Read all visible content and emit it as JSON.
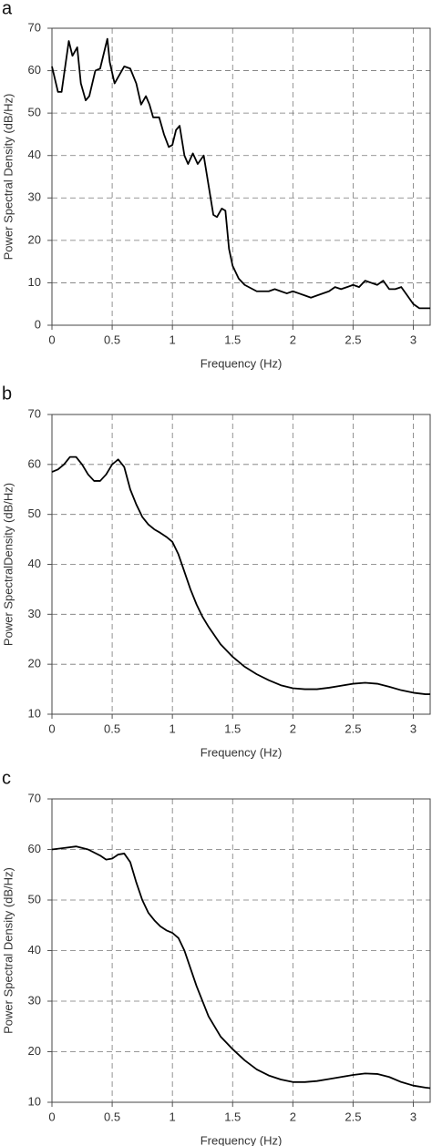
{
  "chart_data": [
    {
      "type": "line",
      "panel_label": "a",
      "xlabel": "Frequency (Hz)",
      "ylabel": "Power Spectral Density (dB/Hz)",
      "x": [
        0,
        0.05,
        0.08,
        0.14,
        0.17,
        0.21,
        0.24,
        0.28,
        0.31,
        0.36,
        0.4,
        0.46,
        0.48,
        0.52,
        0.55,
        0.6,
        0.65,
        0.7,
        0.74,
        0.78,
        0.81,
        0.84,
        0.89,
        0.93,
        0.97,
        1.0,
        1.03,
        1.06,
        1.1,
        1.13,
        1.17,
        1.21,
        1.26,
        1.3,
        1.34,
        1.37,
        1.41,
        1.44,
        1.47,
        1.5,
        1.55,
        1.6,
        1.7,
        1.8,
        1.85,
        1.9,
        1.95,
        2.0,
        2.05,
        2.1,
        2.15,
        2.2,
        2.3,
        2.35,
        2.4,
        2.45,
        2.5,
        2.55,
        2.6,
        2.65,
        2.7,
        2.75,
        2.8,
        2.85,
        2.9,
        2.95,
        3.0,
        3.05,
        3.14
      ],
      "series": [
        {
          "color": "#000000",
          "values": [
            61,
            55,
            55,
            67,
            63.5,
            65.5,
            57,
            53,
            54,
            60,
            60.5,
            67.5,
            62,
            57,
            58.5,
            61,
            60.5,
            57,
            52,
            54,
            52,
            49,
            49,
            45,
            42,
            42.5,
            46,
            47,
            40,
            38,
            40.5,
            38,
            40,
            33,
            26,
            25.5,
            27.5,
            27,
            18,
            14,
            11,
            9.5,
            8,
            8,
            8.5,
            8,
            7.5,
            8,
            7.5,
            7,
            6.5,
            7,
            8,
            9,
            8.5,
            9,
            9.5,
            9,
            10.5,
            10,
            9.5,
            10.5,
            8.5,
            8.5,
            9,
            7,
            5,
            4,
            4
          ]
        }
      ],
      "xlim": [
        0,
        3.14
      ],
      "ylim": [
        0,
        70
      ],
      "xticks": [
        0,
        0.5,
        1,
        1.5,
        2,
        2.5,
        3
      ],
      "yticks": [
        0,
        10,
        20,
        30,
        40,
        50,
        60,
        70
      ],
      "grid": true
    },
    {
      "type": "line",
      "panel_label": "b",
      "xlabel": "Frequency (Hz)",
      "ylabel": "Power SpectralDensity (dB/Hz)",
      "x": [
        0,
        0.05,
        0.1,
        0.15,
        0.2,
        0.25,
        0.3,
        0.35,
        0.4,
        0.45,
        0.5,
        0.55,
        0.6,
        0.65,
        0.7,
        0.75,
        0.8,
        0.85,
        0.9,
        0.95,
        1.0,
        1.05,
        1.1,
        1.15,
        1.2,
        1.25,
        1.3,
        1.4,
        1.5,
        1.6,
        1.7,
        1.8,
        1.9,
        2.0,
        2.1,
        2.2,
        2.3,
        2.4,
        2.5,
        2.6,
        2.7,
        2.8,
        2.9,
        3.0,
        3.1,
        3.14
      ],
      "series": [
        {
          "color": "#000000",
          "values": [
            58.5,
            59,
            60,
            61.5,
            61.5,
            60,
            58,
            56.7,
            56.7,
            58,
            60,
            61,
            59.5,
            55,
            52,
            49.5,
            48,
            47,
            46.3,
            45.5,
            44.5,
            42,
            38.5,
            35,
            32,
            29.5,
            27.5,
            24,
            21.5,
            19.5,
            18,
            16.8,
            15.8,
            15.2,
            15,
            15,
            15.3,
            15.7,
            16.1,
            16.3,
            16.1,
            15.5,
            14.8,
            14.3,
            14,
            14
          ]
        }
      ],
      "xlim": [
        0,
        3.14
      ],
      "ylim": [
        10,
        70
      ],
      "xticks": [
        0,
        0.5,
        1,
        1.5,
        2,
        2.5,
        3
      ],
      "yticks": [
        10,
        20,
        30,
        40,
        50,
        60,
        70
      ],
      "grid": true
    },
    {
      "type": "line",
      "panel_label": "c",
      "xlabel": "Frequency (Hz)",
      "ylabel": "Power Spectral Density (dB/Hz)",
      "x": [
        0,
        0.1,
        0.2,
        0.3,
        0.4,
        0.45,
        0.5,
        0.55,
        0.6,
        0.65,
        0.7,
        0.75,
        0.8,
        0.85,
        0.9,
        0.95,
        1.0,
        1.05,
        1.1,
        1.15,
        1.2,
        1.3,
        1.4,
        1.5,
        1.6,
        1.7,
        1.8,
        1.9,
        2.0,
        2.1,
        2.2,
        2.3,
        2.4,
        2.5,
        2.6,
        2.7,
        2.8,
        2.9,
        3.0,
        3.1,
        3.14
      ],
      "series": [
        {
          "color": "#000000",
          "values": [
            60,
            60.3,
            60.6,
            60,
            58.8,
            58,
            58.2,
            59,
            59.2,
            57.5,
            53.5,
            50,
            47.5,
            46,
            44.8,
            44,
            43.5,
            42.5,
            40,
            36.5,
            33,
            27,
            23,
            20.5,
            18.3,
            16.5,
            15.3,
            14.5,
            14,
            14,
            14.2,
            14.6,
            15,
            15.4,
            15.7,
            15.6,
            15,
            14,
            13.3,
            12.9,
            12.8
          ]
        }
      ],
      "xlim": [
        0,
        3.14
      ],
      "ylim": [
        10,
        70
      ],
      "xticks": [
        0,
        0.5,
        1,
        1.5,
        2,
        2.5,
        3
      ],
      "yticks": [
        10,
        20,
        30,
        40,
        50,
        60,
        70
      ],
      "grid": true
    }
  ]
}
